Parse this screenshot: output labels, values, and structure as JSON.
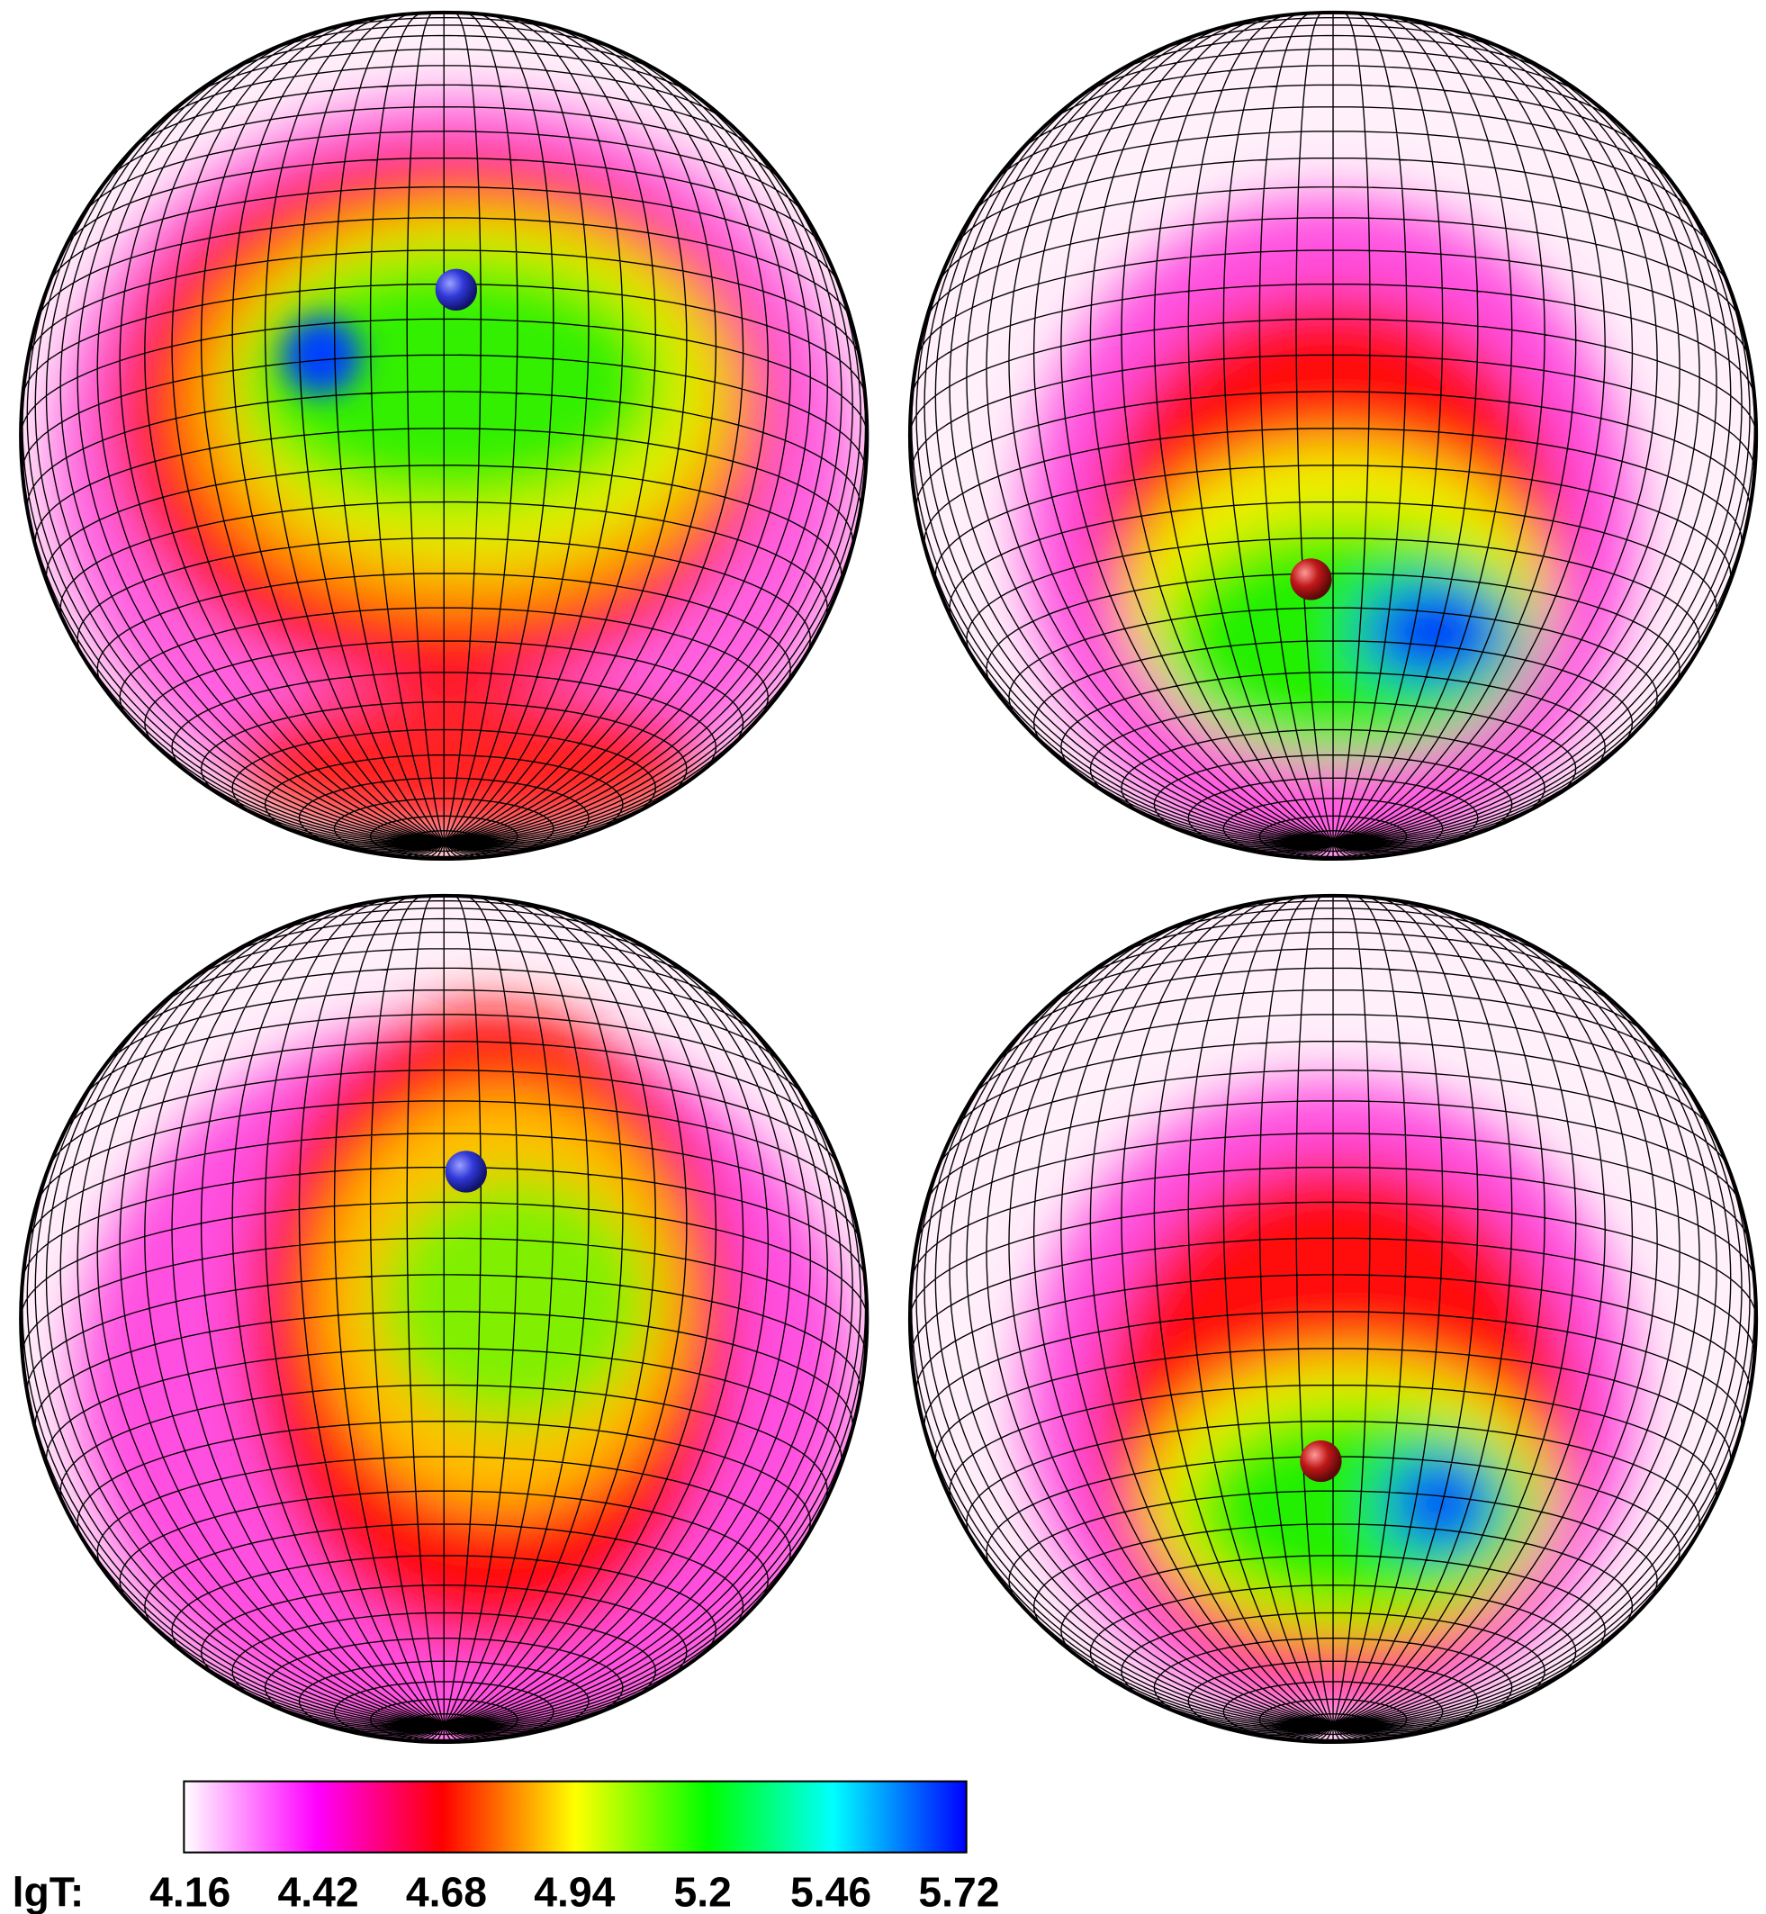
{
  "colorbar": {
    "label": "lgT:",
    "lim": [
      4.16,
      5.72
    ],
    "ticks": [
      4.16,
      4.42,
      4.68,
      4.94,
      5.2,
      5.46,
      5.72
    ]
  }
}
